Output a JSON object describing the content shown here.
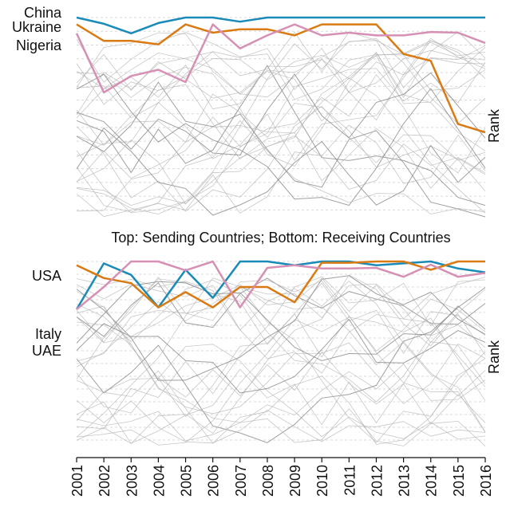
{
  "chart_data": {
    "type": "line",
    "subtitle": "Top: Sending Countries; Bottom: Receiving Countries",
    "x": [
      "2001",
      "2002",
      "2003",
      "2004",
      "2005",
      "2006",
      "2007",
      "2008",
      "2009",
      "2010",
      "2011",
      "2012",
      "2013",
      "2014",
      "2015",
      "2016"
    ],
    "ylabel": "Rank",
    "colors": {
      "blue": "#1a8bb8",
      "orange": "#d97a13",
      "pink": "#d690b4",
      "background": "#b4b4b4"
    },
    "panels": [
      {
        "name": "top",
        "ranks_shown": 30,
        "series": [
          {
            "name": "China",
            "color": "#1a8bb8",
            "values": [
              1,
              1.9,
              3.3,
              1.8,
              1,
              1,
              1.6,
              1,
              1,
              1,
              1,
              1,
              1,
              1,
              1,
              1
            ]
          },
          {
            "name": "Ukraine",
            "color": "#d97a13",
            "values": [
              2,
              4.4,
              4.4,
              4.9,
              2,
              3.2,
              2.7,
              2.7,
              3.6,
              2,
              2,
              2,
              6.3,
              7.3,
              16.5,
              17.7
            ]
          },
          {
            "name": "Nigeria",
            "color": "#d690b4",
            "values": [
              3.3,
              11.9,
              9.5,
              8.6,
              10.4,
              2,
              5.5,
              3.6,
              2,
              3.6,
              3.2,
              3.6,
              3.6,
              3.1,
              3.2,
              4.7
            ]
          }
        ]
      },
      {
        "name": "bottom",
        "ranks_shown": 30,
        "series": [
          {
            "name": "UAE",
            "color": "#1a8bb8",
            "values": [
              8.5,
              1.3,
              3.1,
              8.2,
              2.3,
              6.7,
              1,
              1,
              1.6,
              1,
              1,
              1.6,
              1.3,
              1,
              2.1,
              2.7
            ]
          },
          {
            "name": "USA",
            "color": "#d97a13",
            "values": [
              1.6,
              3.6,
              4.4,
              8.2,
              5.8,
              8.2,
              5,
              5,
              7.4,
              1.2,
              1.2,
              1,
              1,
              2.3,
              1,
              1
            ]
          },
          {
            "name": "Italy",
            "color": "#d690b4",
            "values": [
              8.5,
              5,
              1,
              1,
              2.4,
              1,
              8.2,
              2,
              1.6,
              2.1,
              2.1,
              2,
              3.4,
              1.5,
              3.4,
              2.8
            ]
          }
        ]
      }
    ]
  },
  "labels": {
    "top": [
      "China",
      "Ukraine",
      "Nigeria"
    ],
    "bottom": [
      "USA",
      "Italy",
      "UAE"
    ]
  }
}
